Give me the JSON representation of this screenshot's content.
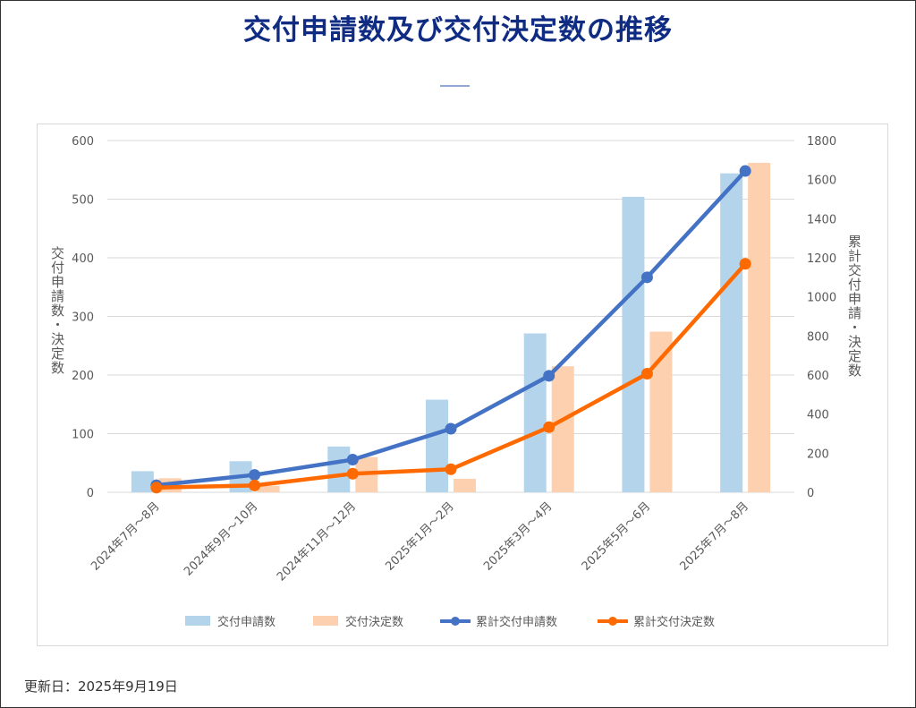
{
  "title": "交付申請数及び交付決定数の推移",
  "footer": "更新日：2025年9月19日",
  "colors": {
    "title": "#0f2b82",
    "bar1": "#b4d4ec",
    "bar2": "#fdd0b0",
    "line1": "#4472c4",
    "line2": "#ff6a00"
  },
  "chart_data": {
    "type": "bar",
    "title": "交付申請数及び交付決定数の推移",
    "categories": [
      "2024年7月～8月",
      "2024年9月～10月",
      "2024年11月～12月",
      "2025年1月～2月",
      "2025年3月～4月",
      "2025年5月～6月",
      "2025年7月～8月"
    ],
    "ylabel": "交付申請数・決定数",
    "y2label": "累計交付申請・決定数",
    "ylim": [
      0,
      600
    ],
    "y2lim": [
      0,
      1800
    ],
    "yticks": [
      "0",
      "100",
      "200",
      "300",
      "400",
      "500",
      "600"
    ],
    "y2ticks": [
      "0",
      "200",
      "400",
      "600",
      "800",
      "1000",
      "1200",
      "1400",
      "1600",
      "1800"
    ],
    "grid": true,
    "legend_position": "bottom",
    "series": [
      {
        "name": "交付申請数",
        "type": "bar",
        "axis": "left",
        "values": [
          36,
          53,
          78,
          158,
          271,
          504,
          544
        ]
      },
      {
        "name": "交付決定数",
        "type": "bar",
        "axis": "left",
        "values": [
          24,
          11,
          60,
          23,
          215,
          274,
          562
        ]
      },
      {
        "name": "累計交付申請数",
        "type": "line",
        "axis": "right",
        "values": [
          36,
          89,
          167,
          325,
          596,
          1100,
          1644
        ]
      },
      {
        "name": "累計交付決定数",
        "type": "line",
        "axis": "right",
        "values": [
          24,
          35,
          95,
          118,
          333,
          607,
          1169
        ]
      }
    ]
  }
}
